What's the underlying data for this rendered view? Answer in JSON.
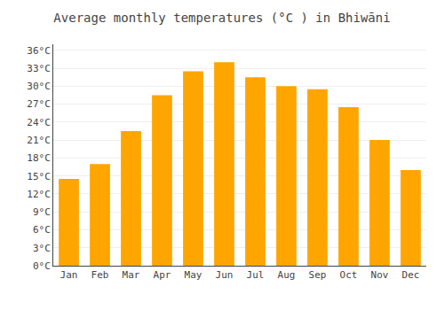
{
  "chart_data": {
    "type": "bar",
    "title": "Average monthly temperatures (°C ) in Bhiwāni",
    "categories": [
      "Jan",
      "Feb",
      "Mar",
      "Apr",
      "May",
      "Jun",
      "Jul",
      "Aug",
      "Sep",
      "Oct",
      "Nov",
      "Dec"
    ],
    "values": [
      14.5,
      17.0,
      22.5,
      28.5,
      32.5,
      34.0,
      31.5,
      30.0,
      29.5,
      26.5,
      21.0,
      16.0
    ],
    "color": "#FFA500",
    "ylim": [
      0,
      37
    ],
    "yticks": [
      {
        "value": 0,
        "label": "0°C"
      },
      {
        "value": 3,
        "label": "3°C"
      },
      {
        "value": 6,
        "label": "6°C"
      },
      {
        "value": 9,
        "label": "9°C"
      },
      {
        "value": 12,
        "label": "12°C"
      },
      {
        "value": 15,
        "label": "15°C"
      },
      {
        "value": 18,
        "label": "18°C"
      },
      {
        "value": 21,
        "label": "21°C"
      },
      {
        "value": 24,
        "label": "24°C"
      },
      {
        "value": 27,
        "label": "27°C"
      },
      {
        "value": 30,
        "label": "30°C"
      },
      {
        "value": 33,
        "label": "33°C"
      },
      {
        "value": 36,
        "label": "36°C"
      }
    ],
    "grid": true
  }
}
